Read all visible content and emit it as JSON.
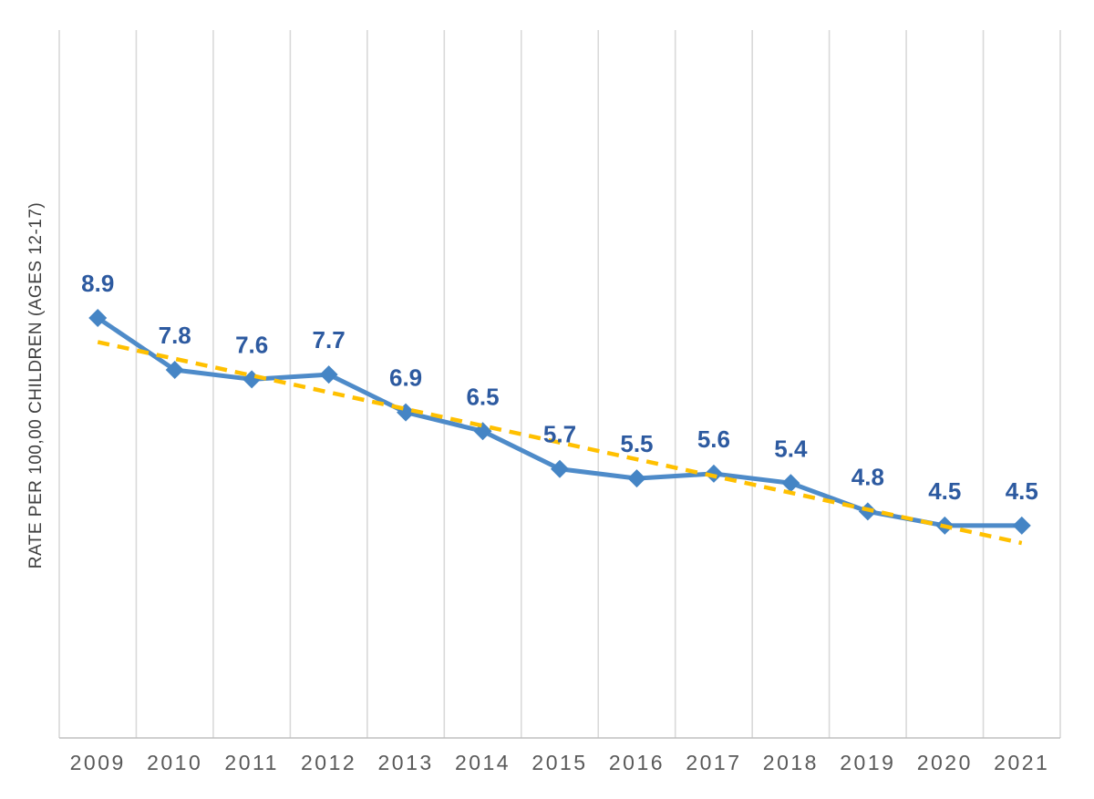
{
  "chart_data": {
    "type": "line",
    "title": "",
    "xlabel": "",
    "ylabel": "RATE PER 100,00 CHILDREN (AGES 12-17)",
    "categories": [
      "2009",
      "2010",
      "2011",
      "2012",
      "2013",
      "2014",
      "2015",
      "2016",
      "2017",
      "2018",
      "2019",
      "2020",
      "2021"
    ],
    "series": [
      {
        "name": "",
        "values": [
          8.9,
          7.8,
          7.6,
          7.7,
          6.9,
          6.5,
          5.7,
          5.5,
          5.6,
          5.4,
          4.8,
          4.5,
          4.5
        ],
        "marker": "diamond",
        "data_labels": [
          "8.9",
          "7.8",
          "7.6",
          "7.7",
          "6.9",
          "6.5",
          "5.7",
          "5.5",
          "5.6",
          "5.4",
          "4.8",
          "4.5",
          "4.5"
        ]
      }
    ],
    "trendline": {
      "type": "linear",
      "value_start": 8.39,
      "value_end": 4.13,
      "style": "dashed"
    },
    "ylim": [
      0,
      15
    ],
    "grid": {
      "vertical": true,
      "horizontal": false
    },
    "legend": "none",
    "colors": {
      "series_line": "#4E8BC9",
      "marker_fill": "#4585C5",
      "data_label": "#2D5AA0",
      "trendline": "#FFC000",
      "gridline": "#D9D9D9",
      "axis_line": "#BFBFBF",
      "tick_label": "#595959",
      "axis_title": "#404040"
    }
  }
}
